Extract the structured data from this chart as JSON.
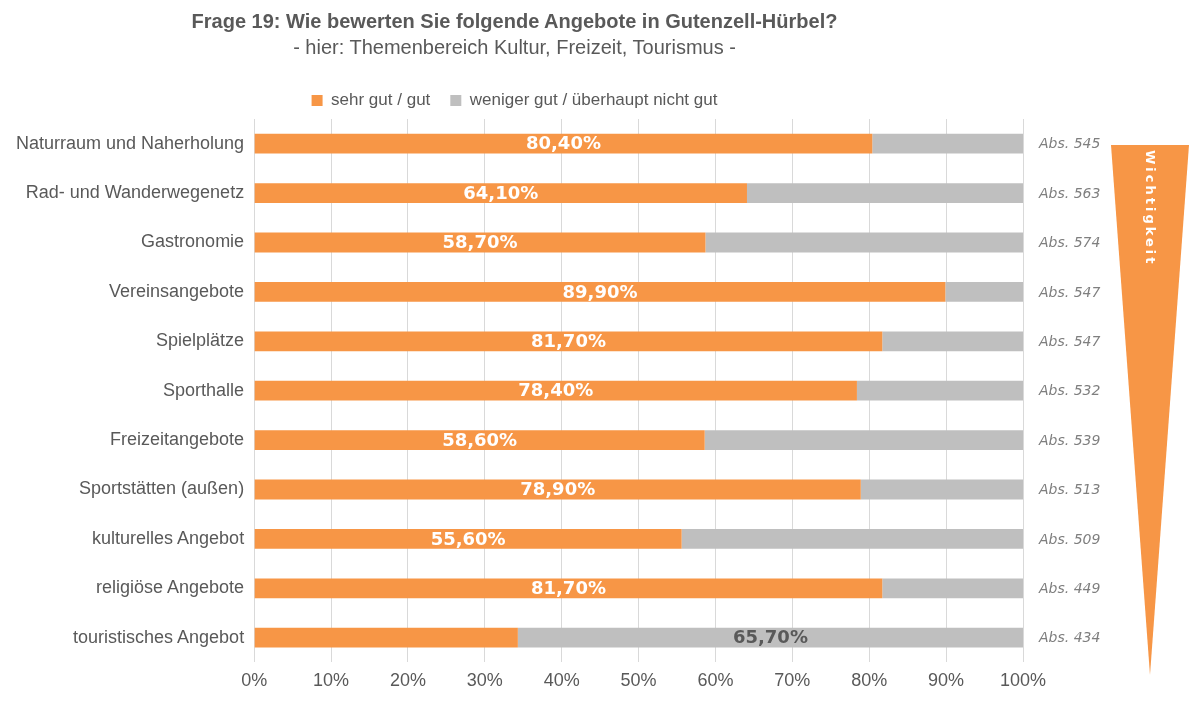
{
  "chart_data": {
    "type": "bar",
    "orientation": "horizontal",
    "stacked": true,
    "title": "Frage 19: Wie bewerten Sie folgende Angebote in Gutenzell-Hürbel?",
    "subtitle": "- hier: Themenbereich Kultur, Freizeit, Tourismus -",
    "categories": [
      "Naturraum und Naherholung",
      "Rad- und Wanderwegenetz",
      "Gastronomie",
      "Vereinsangebote",
      "Spielplätze",
      "Sporthalle",
      "Freizeitangebote",
      "Sportstätten (außen)",
      "kulturelles Angebot",
      "religiöse Angebote",
      "touristisches Angebot"
    ],
    "series": [
      {
        "name": "sehr gut / gut",
        "color": "#f79646",
        "values": [
          80.4,
          64.1,
          58.7,
          89.9,
          81.7,
          78.4,
          58.6,
          78.9,
          55.6,
          81.7,
          34.3
        ],
        "value_labels": [
          "80,40%",
          "64,10%",
          "58,70%",
          "89,90%",
          "81,70%",
          "78,40%",
          "58,60%",
          "78,90%",
          "55,60%",
          "81,70%",
          null
        ]
      },
      {
        "name": "weniger gut / überhaupt nicht gut",
        "color": "#bfbfbf",
        "values": [
          19.6,
          35.9,
          41.3,
          10.1,
          18.3,
          21.6,
          41.4,
          21.1,
          44.4,
          18.3,
          65.7
        ],
        "value_labels": [
          null,
          null,
          null,
          null,
          null,
          null,
          null,
          null,
          null,
          null,
          "65,70%"
        ]
      }
    ],
    "xlim": [
      0,
      100
    ],
    "xticks": [
      {
        "value": 0,
        "label": "0%"
      },
      {
        "value": 10,
        "label": "10%"
      },
      {
        "value": 20,
        "label": "20%"
      },
      {
        "value": 30,
        "label": "30%"
      },
      {
        "value": 40,
        "label": "40%"
      },
      {
        "value": 50,
        "label": "50%"
      },
      {
        "value": 60,
        "label": "60%"
      },
      {
        "value": 70,
        "label": "70%"
      },
      {
        "value": 80,
        "label": "80%"
      },
      {
        "value": 90,
        "label": "90%"
      },
      {
        "value": 100,
        "label": "100%"
      }
    ],
    "grid": "x",
    "legend": "top",
    "annotations": [
      "Abs. 545",
      "Abs. 563",
      "Abs. 574",
      "Abs. 547",
      "Abs. 547",
      "Abs. 532",
      "Abs. 539",
      "Abs. 513",
      "Abs. 509",
      "Abs. 449",
      "Abs. 434",
      "Wichtigkeit"
    ]
  }
}
